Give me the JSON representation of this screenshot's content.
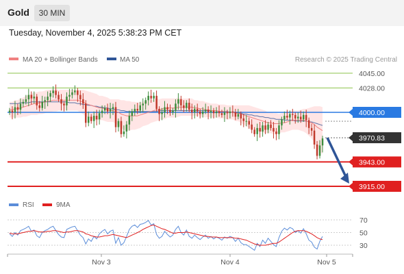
{
  "header": {
    "asset": "Gold",
    "timeframe": "30 MIN"
  },
  "timestamp": "Tuesday, November 4, 2025 5:38:23 PM CET",
  "legend": {
    "ma20_label": "MA 20 + Bollinger Bands",
    "ma50_label": "MA 50",
    "credit": "Research © 2025 Trading Central"
  },
  "colors": {
    "up_candle": "#3d8c3d",
    "down_candle": "#c0392b",
    "ma20": "#f08080",
    "ma50": "#2f5597",
    "bands_fill": "#ffe0e0",
    "pivot": "#2a7ae2",
    "resistance": "#8bc34a",
    "support": "#e02020",
    "last_price": "#333333",
    "forecast_arrow": "#2f5597",
    "rsi": "#5b8dd9",
    "rsi_ma": "#e02020"
  },
  "chart_data": [
    {
      "type": "candlestick",
      "title": "",
      "x_labels": [
        "Nov 3",
        "Nov 4",
        "Nov 5"
      ],
      "price_levels": [
        {
          "value": 4045.0,
          "label": "4045.00",
          "kind": "resistance"
        },
        {
          "value": 4028.0,
          "label": "4028.00",
          "kind": "resistance"
        },
        {
          "value": 4000.0,
          "label": "4000.00",
          "kind": "pivot"
        },
        {
          "value": 3970.83,
          "label": "3970.83",
          "kind": "last_price"
        },
        {
          "value": 3943.0,
          "label": "3943.00",
          "kind": "support"
        },
        {
          "value": 3915.0,
          "label": "3915.00",
          "kind": "support"
        }
      ],
      "forecast": {
        "from": 3970.83,
        "to": 3915.0,
        "direction": "down"
      },
      "y_range": [
        3900,
        4060
      ],
      "closes": [
        4002,
        4000,
        4006,
        4003,
        4010,
        4012,
        4015,
        4020,
        4016,
        4018,
        4008,
        4005,
        4012,
        4014,
        4018,
        4022,
        4025,
        4020,
        4015,
        4010,
        4008,
        4018,
        4020,
        4023,
        4025,
        4020,
        4015,
        4010,
        3988,
        3995,
        3990,
        3996,
        3992,
        3999,
        4002,
        4005,
        4001,
        4004,
        4006,
        3983,
        3990,
        3975,
        3978,
        3986,
        3996,
        4001,
        4004,
        4002,
        4008,
        4010,
        4014,
        4019,
        4016,
        4019,
        4004,
        3998,
        4000,
        4006,
        4003,
        4000,
        4002,
        4010,
        4015,
        4008,
        4005,
        4011,
        4003,
        4000,
        4004,
        4001,
        3998,
        4001,
        4003,
        4000,
        4002,
        3999,
        4001,
        3999,
        3997,
        4000,
        3999,
        4001,
        4000,
        3995,
        3998,
        3993,
        3990,
        3990,
        3986,
        3980,
        3975,
        3982,
        3978,
        3985,
        3980,
        3986,
        3982,
        3978,
        3975,
        3985,
        3992,
        3996,
        3994,
        3998,
        3997,
        3993,
        3995,
        3992,
        3997,
        3991,
        3982,
        3979,
        3963,
        3950,
        3962,
        3970
      ],
      "ma20": [
        4003,
        4003,
        4004,
        4004,
        4005,
        4006,
        4007,
        4008,
        4009,
        4010,
        4010,
        4011,
        4011,
        4012,
        4013,
        4013,
        4014,
        4014,
        4014,
        4014,
        4014,
        4014,
        4014,
        4014,
        4014,
        4014,
        4013,
        4012,
        4010,
        4009,
        4008,
        4007,
        4006,
        4005,
        4005,
        4004,
        4003,
        4002,
        4002,
        4001,
        4000,
        3998,
        3997,
        3996,
        3996,
        3996,
        3996,
        3996,
        3997,
        3998,
        3999,
        4000,
        4001,
        4002,
        4003,
        4003,
        4004,
        4004,
        4005,
        4005,
        4005,
        4005,
        4006,
        4006,
        4006,
        4006,
        4006,
        4006,
        4005,
        4005,
        4004,
        4004,
        4003,
        4003,
        4002,
        4002,
        4002,
        4001,
        4001,
        4001,
        4000,
        4000,
        4000,
        3999,
        3999,
        3998,
        3997,
        3996,
        3995,
        3994,
        3993,
        3992,
        3991,
        3990,
        3989,
        3988,
        3988,
        3987,
        3987,
        3987,
        3988,
        3988,
        3989,
        3990,
        3991,
        3991,
        3991,
        3991,
        3991,
        3990,
        3989,
        3988,
        3986,
        3983,
        3981,
        3979
      ],
      "ma50": [
        4010,
        4010,
        4010,
        4010,
        4011,
        4011,
        4011,
        4011,
        4012,
        4012,
        4012,
        4012,
        4012,
        4012,
        4012,
        4012,
        4012,
        4012,
        4012,
        4012,
        4012,
        4012,
        4011,
        4011,
        4011,
        4010,
        4010,
        4009,
        4009,
        4008,
        4008,
        4007,
        4007,
        4006,
        4006,
        4005,
        4005,
        4004,
        4004,
        4003,
        4003,
        4002,
        4002,
        4001,
        4001,
        4001,
        4001,
        4001,
        4001,
        4001,
        4001,
        4001,
        4001,
        4001,
        4001,
        4002,
        4002,
        4002,
        4002,
        4002,
        4002,
        4002,
        4002,
        4002,
        4002,
        4002,
        4002,
        4002,
        4002,
        4002,
        4002,
        4002,
        4002,
        4002,
        4002,
        4002,
        4002,
        4001,
        4001,
        4001,
        4001,
        4000,
        4000,
        4000,
        3999,
        3999,
        3998,
        3998,
        3997,
        3997,
        3996,
        3996,
        3995,
        3995,
        3994,
        3994,
        3993,
        3993,
        3992,
        3992,
        3992,
        3991,
        3991,
        3991,
        3991,
        3990,
        3990,
        3990,
        3990,
        3990,
        3989,
        3989,
        3988,
        3987,
        3986,
        3985
      ],
      "bb_width": [
        9,
        9,
        10,
        10,
        11,
        11,
        12,
        12,
        12,
        13,
        13,
        13,
        13,
        13,
        13,
        13,
        13,
        13,
        12,
        12,
        12,
        12,
        12,
        12,
        12,
        12,
        13,
        14,
        15,
        15,
        15,
        15,
        15,
        14,
        14,
        14,
        14,
        13,
        13,
        14,
        15,
        16,
        17,
        17,
        17,
        16,
        16,
        15,
        15,
        14,
        14,
        14,
        13,
        13,
        13,
        12,
        12,
        12,
        11,
        11,
        11,
        11,
        11,
        10,
        10,
        10,
        10,
        10,
        9,
        9,
        9,
        9,
        9,
        8,
        8,
        8,
        8,
        8,
        8,
        8,
        8,
        8,
        8,
        9,
        9,
        10,
        11,
        12,
        13,
        13,
        13,
        13,
        13,
        13,
        13,
        12,
        12,
        12,
        12,
        11,
        11,
        11,
        11,
        11,
        11,
        11,
        11,
        12,
        13,
        14,
        16,
        18,
        21,
        24,
        26,
        27
      ]
    },
    {
      "type": "line",
      "title": "",
      "legend": [
        "RSI",
        "9MA"
      ],
      "y_ticks": [
        "70",
        "50",
        "30"
      ],
      "y_range": [
        20,
        80
      ],
      "rsi": [
        48,
        44,
        50,
        46,
        53,
        55,
        57,
        60,
        52,
        54,
        45,
        42,
        50,
        53,
        55,
        58,
        60,
        53,
        47,
        43,
        42,
        55,
        57,
        59,
        60,
        53,
        46,
        42,
        32,
        40,
        36,
        44,
        40,
        48,
        52,
        55,
        48,
        52,
        54,
        33,
        42,
        30,
        34,
        44,
        55,
        60,
        62,
        58,
        63,
        64,
        66,
        69,
        62,
        64,
        47,
        41,
        44,
        52,
        47,
        43,
        46,
        55,
        60,
        50,
        46,
        54,
        44,
        41,
        46,
        42,
        39,
        43,
        46,
        41,
        44,
        40,
        43,
        41,
        38,
        43,
        41,
        44,
        42,
        36,
        41,
        34,
        31,
        31,
        28,
        25,
        22,
        33,
        28,
        38,
        33,
        41,
        36,
        31,
        28,
        42,
        52,
        57,
        54,
        58,
        56,
        50,
        53,
        49,
        56,
        48,
        38,
        35,
        27,
        24,
        36,
        44
      ],
      "rsi_ma": [
        49,
        48,
        48,
        48,
        49,
        50,
        51,
        52,
        52,
        53,
        52,
        51,
        51,
        51,
        52,
        52,
        53,
        53,
        52,
        51,
        50,
        51,
        51,
        52,
        53,
        53,
        52,
        51,
        48,
        47,
        45,
        44,
        43,
        43,
        44,
        45,
        45,
        46,
        47,
        46,
        45,
        44,
        43,
        42,
        44,
        46,
        48,
        50,
        52,
        55,
        57,
        59,
        61,
        62,
        60,
        58,
        56,
        55,
        53,
        51,
        49,
        49,
        50,
        50,
        50,
        51,
        50,
        49,
        48,
        47,
        46,
        45,
        44,
        44,
        43,
        43,
        43,
        42,
        42,
        42,
        42,
        42,
        42,
        41,
        41,
        40,
        39,
        38,
        36,
        34,
        32,
        31,
        30,
        30,
        30,
        31,
        32,
        33,
        33,
        35,
        38,
        41,
        44,
        47,
        50,
        52,
        53,
        53,
        53,
        52,
        50,
        48,
        45,
        42,
        40,
        39
      ]
    }
  ]
}
